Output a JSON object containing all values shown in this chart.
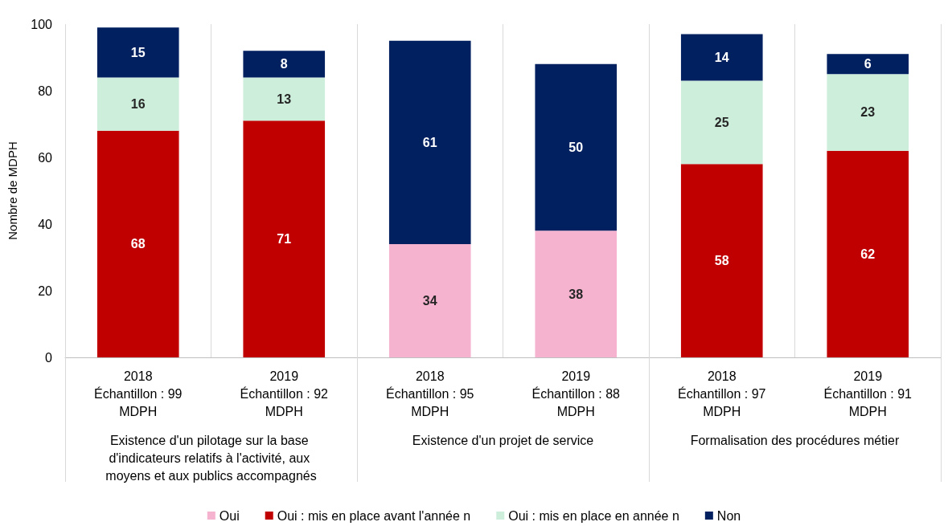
{
  "chart_data": {
    "type": "bar",
    "stacked": true,
    "ylabel": "Nombre de MDPH",
    "categories": [
      "2018\nÉchantillon : 99\nMDPH",
      "2019\nÉchantillon : 92\nMDPH",
      "2018\nÉchantillon : 95\nMDPH",
      "2019\nÉchantillon : 88\nMDPH",
      "2018\nÉchantillon : 97\nMDPH",
      "2019\nÉchantillon : 91\nMDPH"
    ],
    "series": [
      {
        "name": "Oui",
        "color": "#f6b3cf",
        "values": [
          null,
          null,
          34,
          38,
          null,
          null
        ]
      },
      {
        "name": "Oui : mis en place avant l'année n",
        "color": "#c00000",
        "values": [
          68,
          71,
          null,
          null,
          58,
          62
        ]
      },
      {
        "name": "Oui : mis en place en année n",
        "color": "#cdeedb",
        "values": [
          16,
          13,
          null,
          null,
          25,
          23
        ]
      },
      {
        "name": "Non",
        "color": "#002060",
        "values": [
          15,
          8,
          61,
          50,
          14,
          6
        ]
      }
    ],
    "ylim": [
      0,
      100
    ],
    "yticks": [
      0,
      20,
      40,
      60,
      80,
      100
    ],
    "grid": "x",
    "legend": "bottom",
    "data_labels": true,
    "annotations": [
      "Existence d'un pilotage sur la base d'indicateurs relatifs à l'activité, aux moyens et aux publics accompagnés",
      "Existence d'un projet de service",
      "Formalisation des procédures métier"
    ]
  }
}
